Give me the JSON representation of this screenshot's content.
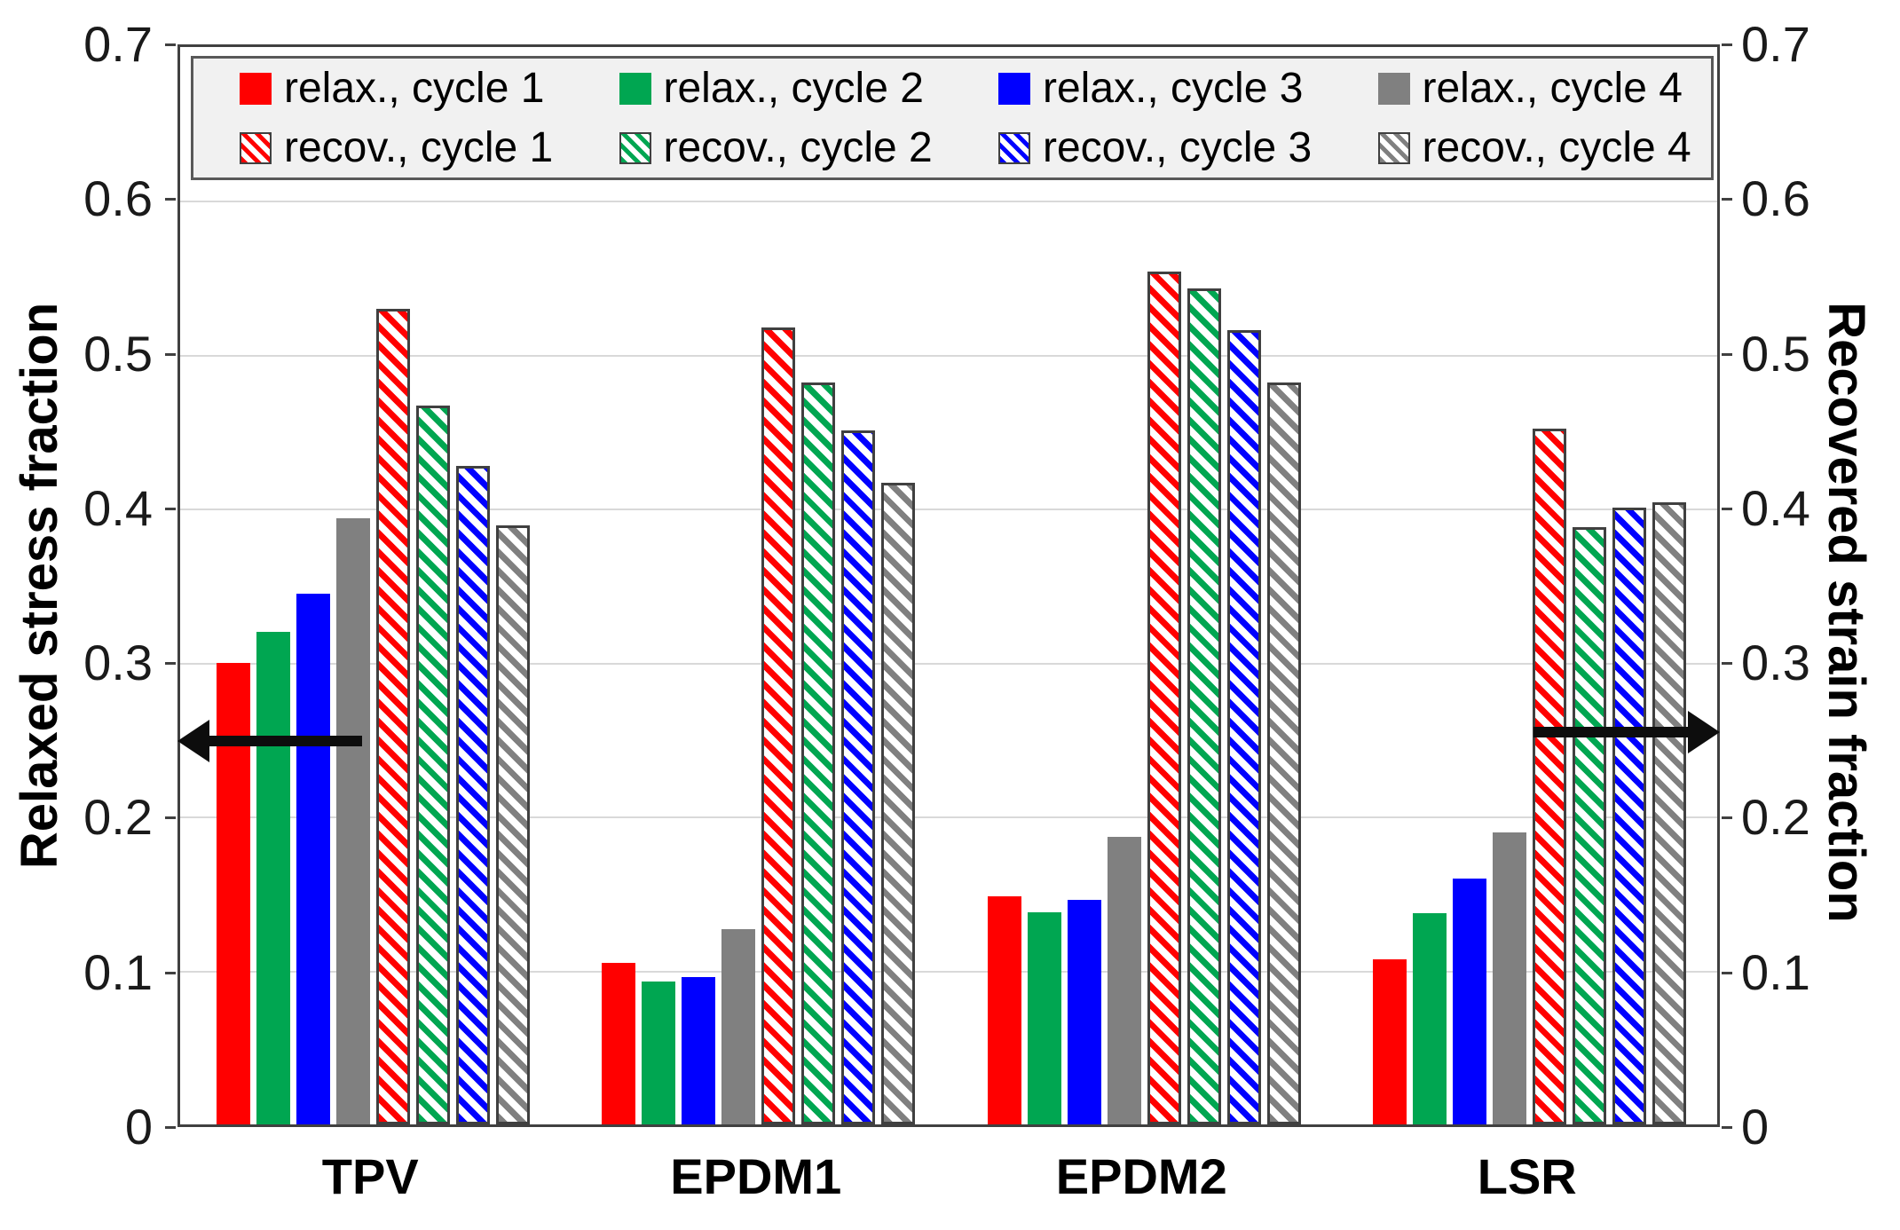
{
  "figure": {
    "left_axis_title": "Relaxed stress fraction",
    "right_axis_title": "Recovered strain fraction"
  },
  "legend": {
    "items": [
      {
        "label": "relax., cycle 1",
        "color": "#FF0000",
        "style": "solid"
      },
      {
        "label": "relax., cycle 2",
        "color": "#00A651",
        "style": "solid"
      },
      {
        "label": "relax., cycle 3",
        "color": "#0000FF",
        "style": "solid"
      },
      {
        "label": "relax., cycle 4",
        "color": "#808080",
        "style": "solid"
      },
      {
        "label": "recov., cycle 1",
        "color": "#FF0000",
        "style": "hatched"
      },
      {
        "label": "recov., cycle 2",
        "color": "#00A651",
        "style": "hatched"
      },
      {
        "label": "recov., cycle 3",
        "color": "#0000FF",
        "style": "hatched"
      },
      {
        "label": "recov., cycle 4",
        "color": "#808080",
        "style": "hatched"
      }
    ]
  },
  "chart_data": {
    "type": "bar",
    "categories": [
      "TPV",
      "EPDM1",
      "EPDM2",
      "LSR"
    ],
    "series": [
      {
        "name": "relax., cycle 1",
        "axis": "left",
        "style": "solid",
        "color": "#FF0000",
        "values": [
          0.3,
          0.105,
          0.148,
          0.107
        ]
      },
      {
        "name": "relax., cycle 2",
        "axis": "left",
        "style": "solid",
        "color": "#00A651",
        "values": [
          0.32,
          0.093,
          0.138,
          0.137
        ]
      },
      {
        "name": "relax., cycle 3",
        "axis": "left",
        "style": "solid",
        "color": "#0000FF",
        "values": [
          0.345,
          0.096,
          0.146,
          0.16
        ]
      },
      {
        "name": "relax., cycle 4",
        "axis": "left",
        "style": "solid",
        "color": "#808080",
        "values": [
          0.394,
          0.127,
          0.187,
          0.19
        ]
      },
      {
        "name": "recov., cycle 1",
        "axis": "right",
        "style": "hatched",
        "color": "#FF0000",
        "values": [
          0.53,
          0.518,
          0.554,
          0.452
        ]
      },
      {
        "name": "recov., cycle 2",
        "axis": "right",
        "style": "hatched",
        "color": "#00A651",
        "values": [
          0.467,
          0.482,
          0.543,
          0.388
        ]
      },
      {
        "name": "recov., cycle 3",
        "axis": "right",
        "style": "hatched",
        "color": "#0000FF",
        "values": [
          0.428,
          0.451,
          0.516,
          0.401
        ]
      },
      {
        "name": "recov., cycle 4",
        "axis": "right",
        "style": "hatched",
        "color": "#808080",
        "values": [
          0.389,
          0.417,
          0.482,
          0.404
        ]
      }
    ],
    "title": "",
    "xlabel": "",
    "left_ylabel": "Relaxed stress fraction",
    "right_ylabel": "Recovered strain fraction",
    "ylim": [
      0,
      0.7
    ],
    "yticks": [
      0,
      0.1,
      0.2,
      0.3,
      0.4,
      0.5,
      0.6,
      0.7
    ],
    "ytick_labels": [
      "0",
      "0.1",
      "0.2",
      "0.3",
      "0.4",
      "0.5",
      "0.6",
      "0.7"
    ],
    "grid": true,
    "legend_position": "top-inside",
    "annotations": [
      {
        "type": "arrow",
        "direction": "left",
        "meaning": "solid bars read on left axis",
        "y_value": 0.25
      },
      {
        "type": "arrow",
        "direction": "right",
        "meaning": "hatched bars read on right axis",
        "y_value": 0.255
      }
    ],
    "colors": {
      "cycle1": "#FF0000",
      "cycle2": "#00A651",
      "cycle3": "#0000FF",
      "cycle4": "#808080",
      "hatch_border": "#404040",
      "gridline": "#D9D9D9",
      "axis": "#404040"
    }
  }
}
